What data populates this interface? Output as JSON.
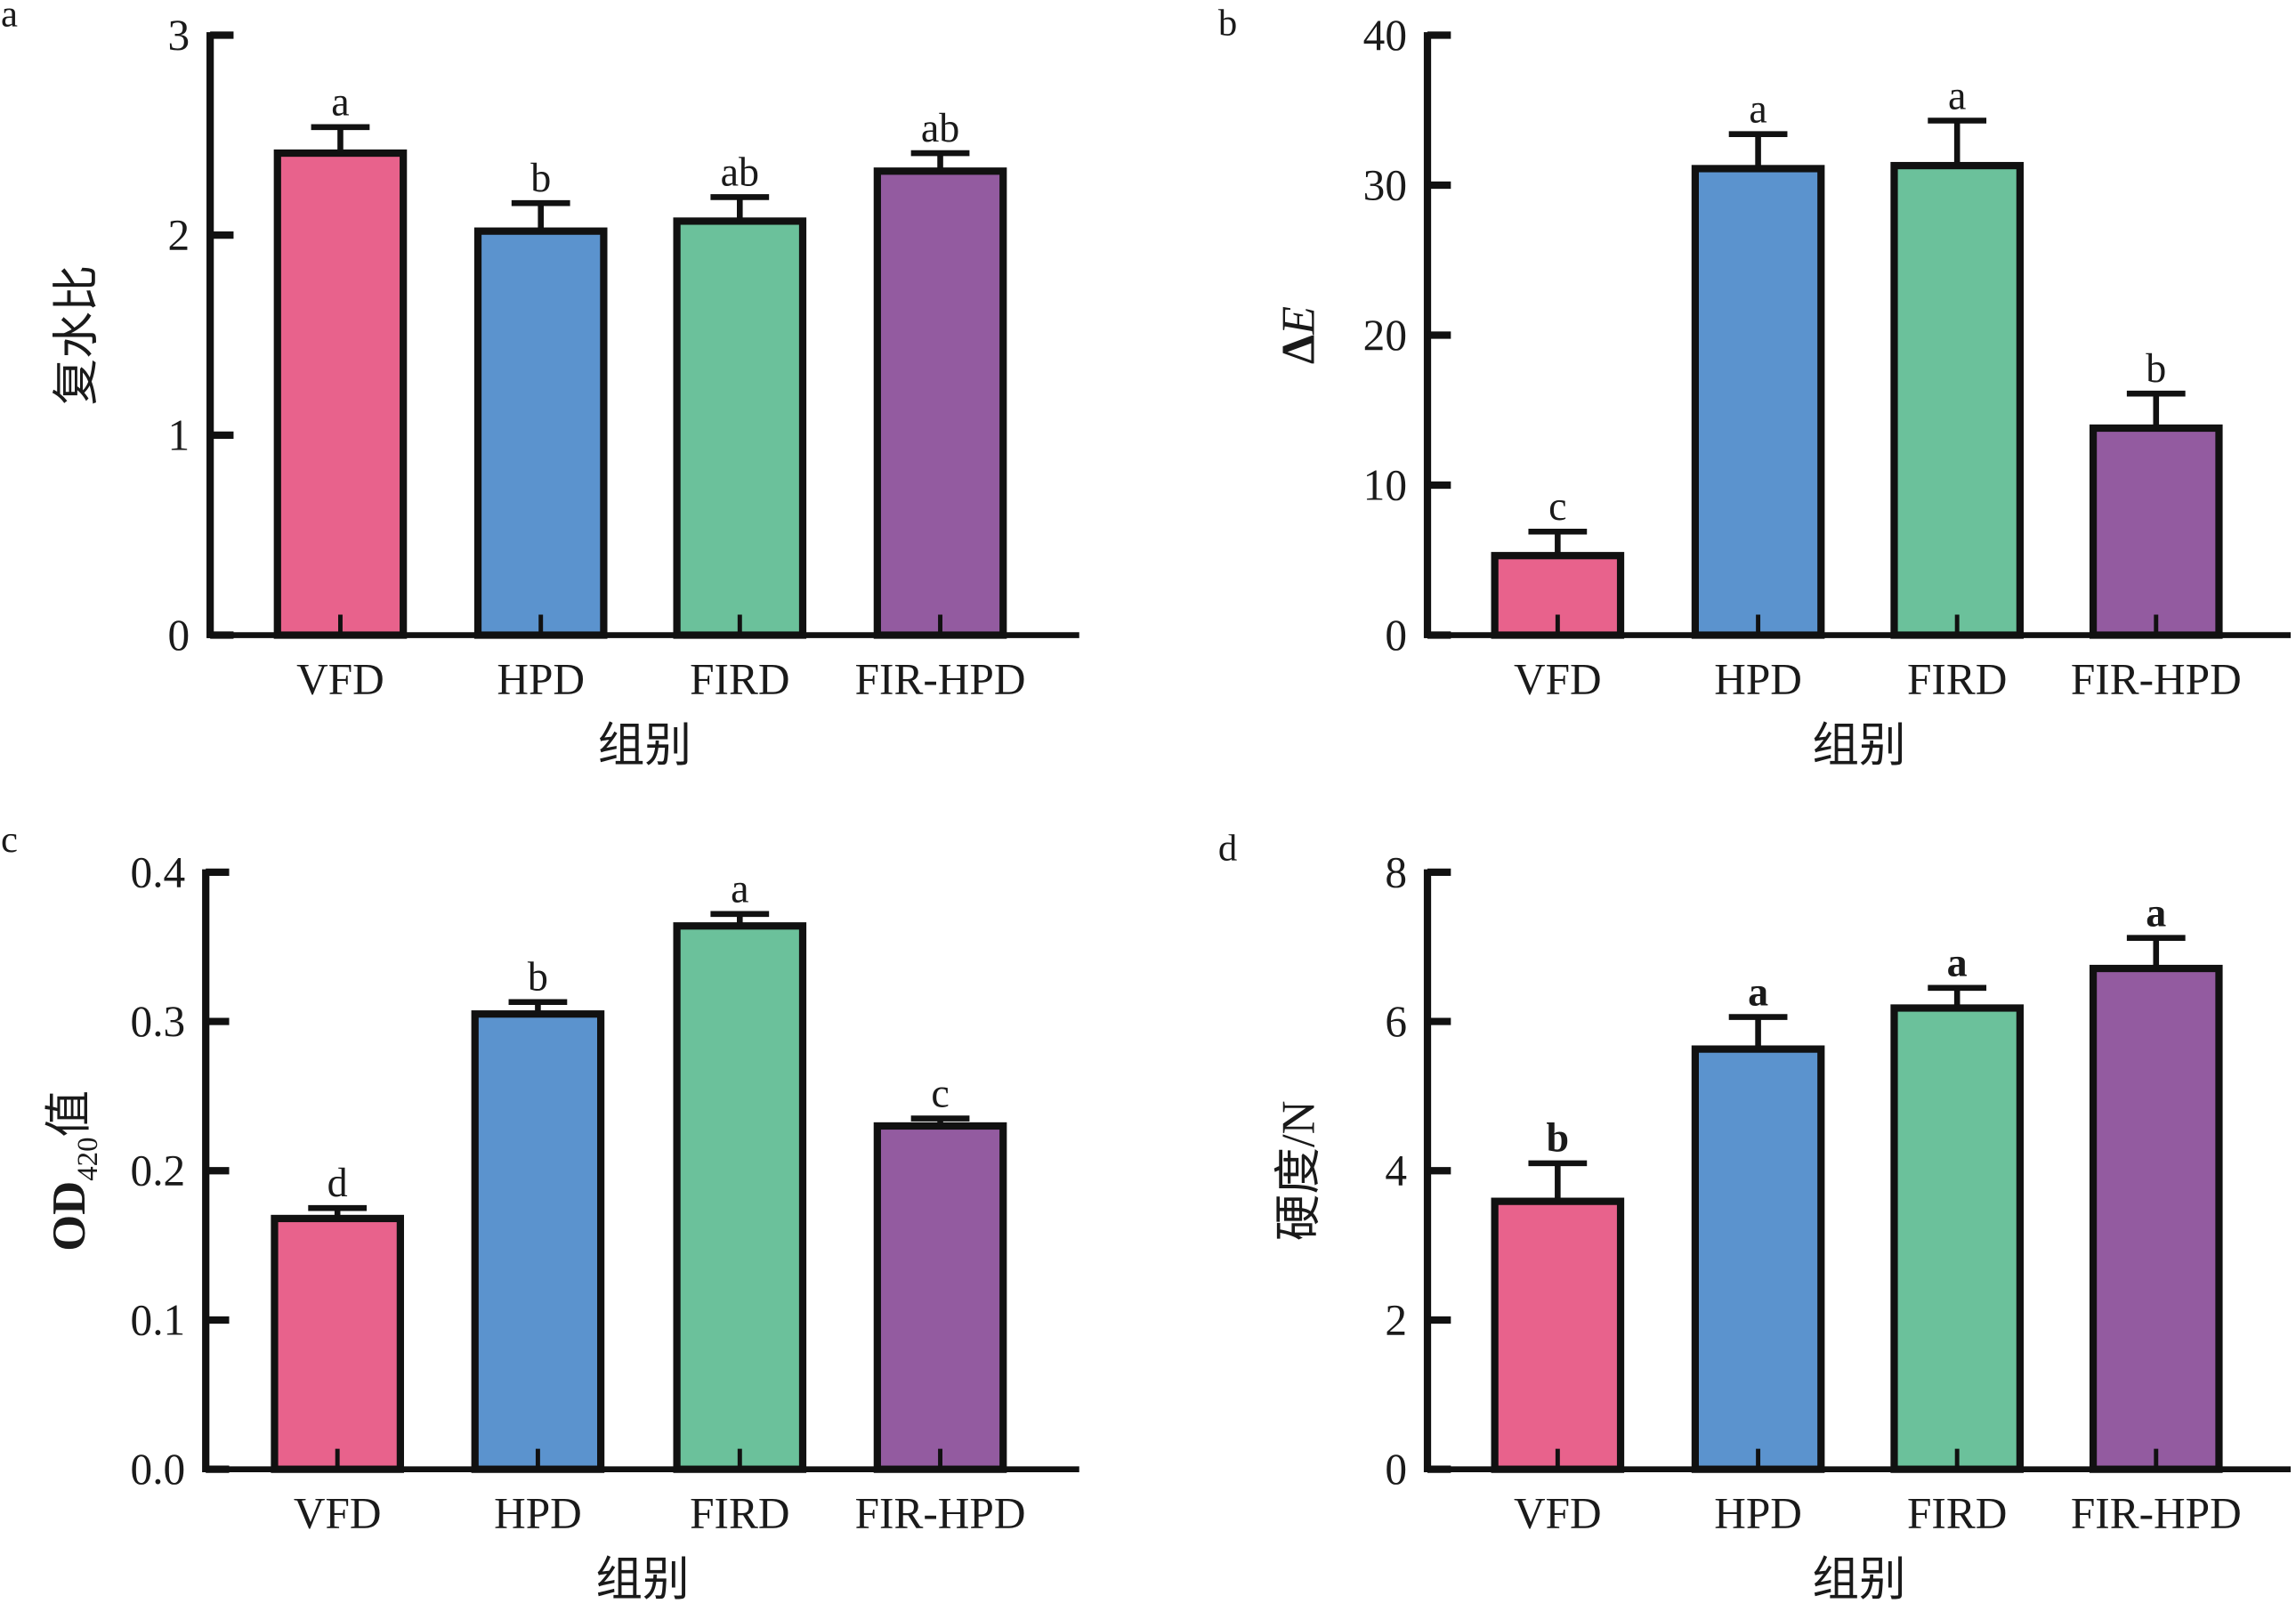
{
  "colors": [
    "#E8628C",
    "#5B93CE",
    "#6BC19B",
    "#935BA0"
  ],
  "chart_data": [
    {
      "panel": "a",
      "type": "bar",
      "categories": [
        "VFD",
        "HPD",
        "FIRD",
        "FIR-HPD"
      ],
      "values": [
        2.41,
        2.02,
        2.07,
        2.32
      ],
      "error": [
        0.13,
        0.14,
        0.12,
        0.09
      ],
      "letters": [
        "a",
        "b",
        "ab",
        "ab"
      ],
      "ylabel": [
        {
          "text": "复水比"
        }
      ],
      "xlabel": "组别",
      "ylim": [
        0,
        3
      ],
      "yticks": [
        0,
        1,
        2,
        3
      ],
      "ytick_labels": [
        "0",
        "1",
        "2",
        "3"
      ]
    },
    {
      "panel": "b",
      "type": "bar",
      "categories": [
        "VFD",
        "HPD",
        "FIRD",
        "FIR-HPD"
      ],
      "values": [
        5.3,
        31.1,
        31.3,
        13.8
      ],
      "error": [
        1.6,
        2.3,
        3.0,
        2.3
      ],
      "letters": [
        "c",
        "a",
        "a",
        "b"
      ],
      "ylabel": [
        {
          "text": "Δ"
        },
        {
          "text": "E",
          "italic": true
        }
      ],
      "xlabel": "组别",
      "ylim": [
        0,
        40
      ],
      "yticks": [
        0,
        10,
        20,
        30,
        40
      ],
      "ytick_labels": [
        "0",
        "10",
        "20",
        "30",
        "40"
      ]
    },
    {
      "panel": "c",
      "type": "bar",
      "categories": [
        "VFD",
        "HPD",
        "FIRD",
        "FIR-HPD"
      ],
      "values": [
        0.168,
        0.305,
        0.364,
        0.23
      ],
      "error": [
        0.007,
        0.008,
        0.008,
        0.005
      ],
      "letters": [
        "d",
        "b",
        "a",
        "c"
      ],
      "ylabel": [
        {
          "text": "OD"
        },
        {
          "text": "420",
          "sub": true
        },
        {
          "text": "值"
        }
      ],
      "xlabel": "组别",
      "ylim": [
        0,
        0.4
      ],
      "yticks": [
        0,
        0.1,
        0.2,
        0.3,
        0.4
      ],
      "ytick_labels": [
        "0.0",
        "0.1",
        "0.2",
        "0.3",
        "0.4"
      ]
    },
    {
      "panel": "d",
      "type": "bar",
      "categories": [
        "VFD",
        "HPD",
        "FIRD",
        "FIR-HPD"
      ],
      "values": [
        3.59,
        5.63,
        6.18,
        6.71
      ],
      "error": [
        0.51,
        0.43,
        0.27,
        0.41
      ],
      "letters": [
        "b",
        "a",
        "a",
        "a"
      ],
      "ylabel": [
        {
          "text": "硬度/N"
        }
      ],
      "xlabel": "组别",
      "ylim": [
        0,
        8
      ],
      "yticks": [
        0,
        2,
        4,
        6,
        8
      ],
      "ytick_labels": [
        "0",
        "2",
        "4",
        "6",
        "8"
      ]
    }
  ]
}
